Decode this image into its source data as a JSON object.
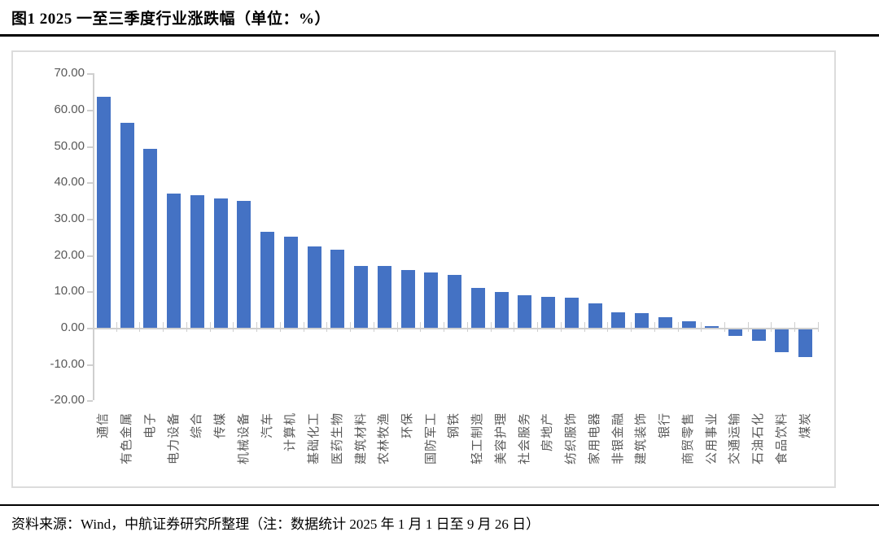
{
  "header": {
    "title": "图1  2025 一至三季度行业涨跌幅（单位：%）"
  },
  "footer": {
    "source_note": "资料来源：Wind，中航证券研究所整理（注：数据统计 2025 年 1 月 1 日至 9 月 26 日）"
  },
  "colors": {
    "bar": "#4472C4",
    "axis_text": "#595959",
    "axis_line": "#cfcfcf",
    "frame_border": "#dcdcdc",
    "divider": "#000000"
  },
  "chart_data": {
    "type": "bar",
    "title": "2025 一至三季度行业涨跌幅（单位：%）",
    "unit": "%",
    "categories": [
      "通信",
      "有色金属",
      "电子",
      "电力设备",
      "综合",
      "传媒",
      "机械设备",
      "汽车",
      "计算机",
      "基础化工",
      "医药生物",
      "建筑材料",
      "农林牧渔",
      "环保",
      "国防军工",
      "钢铁",
      "轻工制造",
      "美容护理",
      "社会服务",
      "房地产",
      "纺织服饰",
      "家用电器",
      "非银金融",
      "建筑装饰",
      "银行",
      "商贸零售",
      "公用事业",
      "交通运输",
      "石油石化",
      "食品饮料",
      "煤炭"
    ],
    "values": [
      63.5,
      56.3,
      49.3,
      37.0,
      36.4,
      35.5,
      35.0,
      26.4,
      25.0,
      22.3,
      21.5,
      17.1,
      17.0,
      15.9,
      15.3,
      14.5,
      11.0,
      9.8,
      8.9,
      8.5,
      8.2,
      6.8,
      4.2,
      4.0,
      2.8,
      1.8,
      0.5,
      -1.9,
      -3.2,
      -6.2,
      -7.6
    ],
    "xlabel": "",
    "ylabel": "",
    "ylim": [
      -20,
      70
    ],
    "yticks": [
      70,
      60,
      50,
      40,
      30,
      20,
      10,
      0,
      -10,
      -20
    ],
    "ytick_labels": [
      "70.00",
      "60.00",
      "50.00",
      "40.00",
      "30.00",
      "20.00",
      "10.00",
      "0.00",
      "-10.00",
      "-20.00"
    ],
    "grid": false,
    "legend_position": "none",
    "bar_color": "#4472C4"
  }
}
